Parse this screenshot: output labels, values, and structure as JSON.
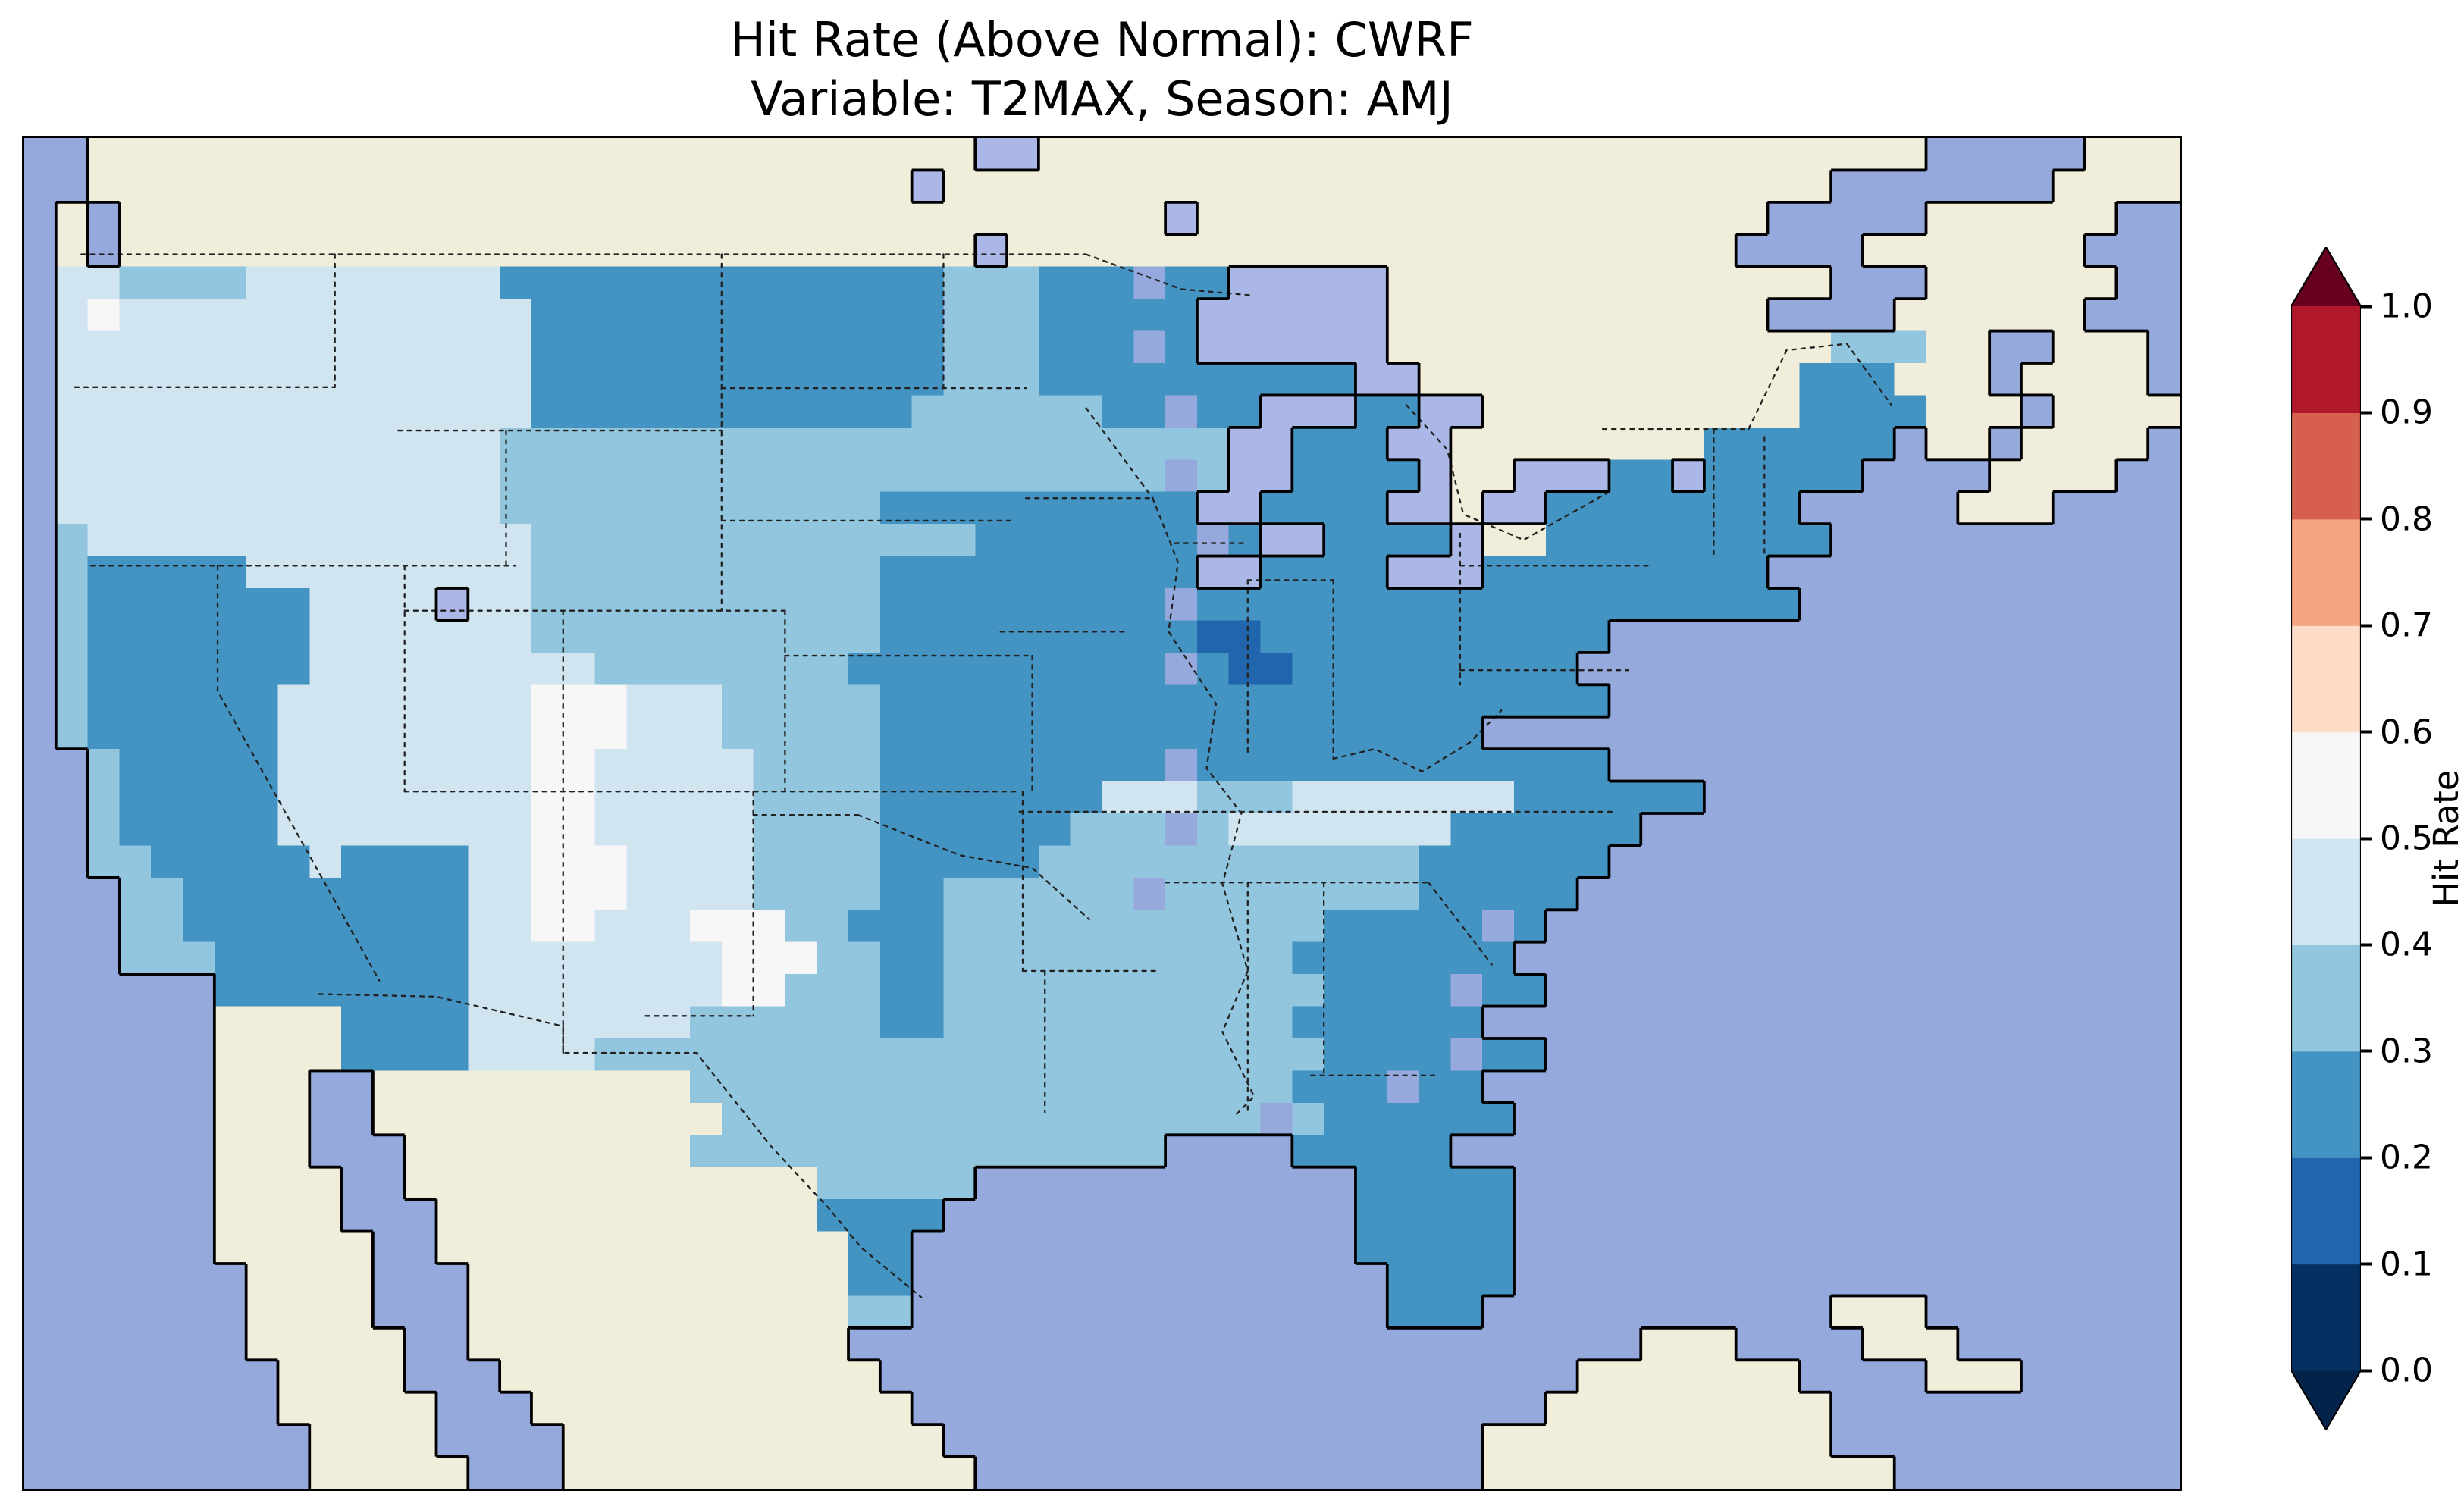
{
  "title": {
    "line1": "Hit Rate (Above Normal): CWRF",
    "line2": "Variable: T2MAX, Season: AMJ"
  },
  "colorbar": {
    "label": "Hit Rate",
    "ticks": [
      "1.0",
      "0.9",
      "0.8",
      "0.7",
      "0.6",
      "0.5",
      "0.4",
      "0.3",
      "0.2",
      "0.1",
      "0.0"
    ],
    "segment_colors_bottom_to_top": [
      "#053061",
      "#2166ac",
      "#4393c3",
      "#92c5de",
      "#d1e5f0",
      "#f7f7f7",
      "#fddbc7",
      "#f4a582",
      "#d6604d",
      "#b2182b"
    ],
    "under_color": "#03234a",
    "over_color": "#67001f"
  },
  "map_style": {
    "ocean": "#95a9dc",
    "land_outside_us": "#f0eeda",
    "lake": "#abb7e6",
    "coastline": "#000000",
    "cell_colors": {
      "~": "#95a9dc",
      "C": "#f0eeda",
      "k": "#abb7e6",
      "0": "#053061",
      "1": "#2166ac",
      "2": "#4393c3",
      "3": "#92c5de",
      "4": "#d1e5f0",
      "5": "#f7f7f7"
    }
  },
  "chart_data": {
    "type": "heatmap",
    "title": "Hit Rate (Above Normal): CWRF",
    "subtitle": "Variable: T2MAX, Season: AMJ",
    "metric": "Hit Rate (Above Normal)",
    "model": "CWRF",
    "variable": "T2MAX",
    "season": "AMJ",
    "region": "Contiguous United States, approx. 126W-59W / 22N-51.5N",
    "colorbar_label": "Hit Rate",
    "colorbar_ticks": [
      1.0,
      0.9,
      0.8,
      0.7,
      0.6,
      0.5,
      0.4,
      0.3,
      0.2,
      0.1,
      0.0
    ],
    "bin_size": 0.1,
    "colormap": "RdBu_r, discrete 0.1 bins, colorbar extended at both ends",
    "observed_range": "Hit rates over CONUS fall mostly between 0.2 and 0.5: large 0.2-0.3 areas over the Midwest/Ohio Valley, Montana-Dakotas, California, the Northeast, the Southeast coast and Florida; 0.4-0.6 pale patches over the interior West, New Mexico/Texas panhandle and Tennessee; a single 0.1-0.2 pocket in Indiana; no values above 0.6 appear",
    "grid_encoding": {
      "~": "ocean",
      "C": "land outside US (no data)",
      "k": "lake",
      "1": "hit rate 0.1-0.2",
      "2": "hit rate 0.2-0.3",
      "3": "hit rate 0.3-0.4",
      "4": "hit rate 0.4-0.5",
      "5": "hit rate 0.5-0.6"
    },
    "grid_cols": 68,
    "grid_rows_north_to_south": [
      "~~CCCCCCCCCCCCCCCCCCCCCCCCCCCCkkCCCCCCCCCCCCCCCCCCCCCCCCCCCC~~~~~CCCCC",
      "~~CCCCCCCCCCCCCCCCCCCCCCCCCCkCCCCCCCCCCCCCCCCCCCCCCCCCCCC~~~~~~~CCCCCC",
      "~C~CCCCCCCCCCCCCCCCCCCCCCCCCCCCCCCCCkCCCCCCCCCCCCCCCCCC~~~~~CCCCCC~",
      "~C~CCCCCCCCCCCCCCCCCCCCCCCCCCCkCCCCCCCCCCCCCCCCCCCCCCC~~~~CCCCCCC~~",
      "~4433334444444422222222222222333222 22kkkkkCCCCCCCCCCCCCC~~~CCCCCC~~~",
      "~454444444444444222222222222233322222kkkkkkCCCCCCCCCCCC~~~~CCCCCC~~~",
      "~4444444444444442222222222222333222 2kkkkkkCCCCCCCCCCCCCC333CC~~CCC~~",
      "~44444444444444422222222222223332222222222kkCCCCCCCCCCCC222CCC~CCCC~",
      "~44444444444444422222222222233333322 22kkk22kkCCCCCCCCCC2222CCC~CCCC~",
      "~4444444444444433333333333333333333333kk222kkCCCCCCCC222222~CC~CCCC~",
      "~44444444444444333333333333333333333 3kk2222kCCkkk22k22222~~~~CCCC~~",
      "~444444444444443333333333332222222222kk2222kkCkk22222222~~~~~CCC~~~",
      "~344444444444444333333333333332222222 2kk2222kCC222222222~~~~~~~~~~~~~~",
      "~322222444444444333333333332222222222kk2222kkk222222222~~~~~~~~~~~~~",
      "~322222224444k4433333333333222222222 2222222222222222222~~~~~~~~~~~~~~",
      "~3222222244444443333333333322222222221122222222222~~~~~~~~~~~~~~~~~~",
      "~32222222444444444333333332222222222 211222222222~~~~~~~~~~~~~~~~~~",
      "~3222222444444445554443333322222222222222222222222~~~~~~~~~~~~~~~~~~",
      "~322222244444444555444333332222222222222222222~~~~~~~~~~~~~~~~~~~~",
      "~~3222224444444455444443333222222222 2222222222222~~~~~~~~~~~~~~~~~~",
      "~~322222444444445544444333322222224443334444444222222~~~~~~~~~~~~~~",
      "~~3222224444444455444443333222222333 34444444222222~~~~~~~~~~~~~~~~",
      "~~332222242222445554444333322222333333333333222222~~~~~~~~~~~~~~~~~~",
      "~~~33222222222445554444333322333333 3333333322222~~~~~~~~~~~~~~~~~~~",
      "~~~3322222222244554445553322233333333333322222 2~~~~~~~~~~~~~~~~~~~~~~",
      "~~~33322222222444444445553322333333333332222222~~~~~~~~~~~~~~~~~~~~~~",
      "~~~~~~222222224444444455333223333333333332222 22~~~~~~~~~~~~~~~~~~~~~",
      "~~~~~~CCCC222244444443333332233333333333222222~~~~~~~~~~~~~~~~~~~~~~~~",
      "~~~~~~CCCC22224444333333333333333333333332222 22~~~~~~~~~~~~~~~~~~~~~",
      "~~~~~~CCC~~CCCCCCCCCC3333333333333333333222 22~~~~~~~~~~~~~~~~~~~~~~~~",
      "~~~~~~CCC~~CCCCCCCCCCC33333333333333333 3222222~~~~~~~~~~~~~~~~~~~~~~~~",
      "~~~~~~CCC~~~CCCCCCCCC333333333333333~~~~22222~~~~~~~~~~~~~~~~~~~~~~~",
      "~~~~~~CCCC~~CCCCCCCCCCCCC33333~~~~~~~~~~~~22222~~~~~~~~~~~~~~~~~~~~~~~",
      "~~~~~~CCCC~~~CCCCCCCCCCCC2222~~~~~~~~~~~~~22222~~~~~~~~~~~~~~~~~~~~~~~",
      "~~~~~~CCCCC~~CCCCCCCCCCCCC22~~~~~~~~~~~~~~22222~~~~~~~~~~~~~~~~~~~~~~~",
      "~~~~~~~CCCC~~~CCCCCCCCCCCC22~~~~~~~~~~~~~~~2222~~~~~~~~~~~~~~~~~~~~~~~",
      "~~~~~~~CCCC~~~CCCCCCCCCCCC33~~~~~~~~~~~~~~~222~~~~~~~~~~~CCC~~~~~~~~",
      "~~~~~~~CCCCC~~CCCCCCCCCCCC~~~~~~~~~~~~~~~~~~~~~~~~~CCC~~~~CCC~~~~~~~",
      "~~~~~~~~CCCC~~~CCCCCCCCCCCC~~~~~~~~~~~~~~~~~~~~~~CCCCCCC~~~~CCC~~~~~",
      "~~~~~~~~CCCCC~~~CCCCCCCCCCCC~~~~~~~~~~~~~~~~~~~~CCCCCCCCC~~~~~~~~~~~",
      "~~~~~~~~~CCCC~~~~CCCCCCCCCCCC~~~~~~~~~~~~~~~~~CCCCCCCCCCC~~~~~~~~~~",
      "~~~~~~~~~CCCCC~~~CCCCCCCCCCCCC~~~~~~~~~~~~~~~~CCCCCCCCCCCCC~~~~~~~~~"
    ]
  }
}
